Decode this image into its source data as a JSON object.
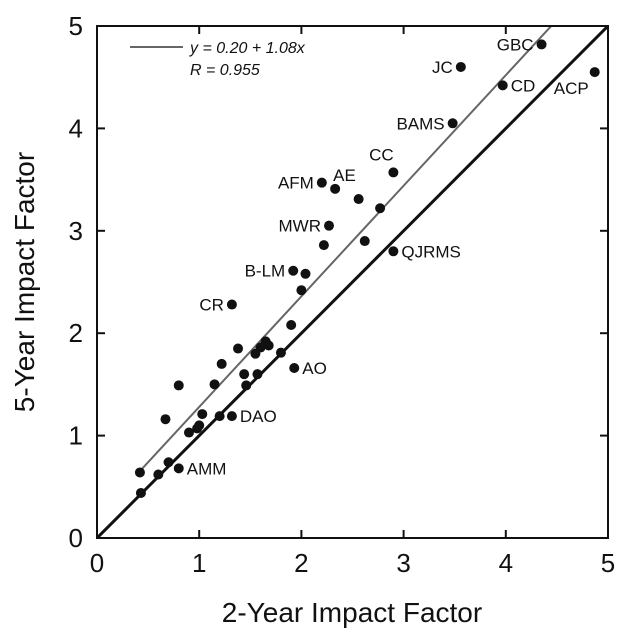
{
  "chart_data": {
    "type": "scatter",
    "xlabel": "2-Year Impact Factor",
    "ylabel": "5-Year Impact Factor",
    "xlim": [
      0,
      5
    ],
    "ylim": [
      0,
      5
    ],
    "x_ticks": [
      "0",
      "1",
      "2",
      "3",
      "4",
      "5"
    ],
    "y_ticks": [
      "0",
      "1",
      "2",
      "3",
      "4",
      "5"
    ],
    "grid": false,
    "legend": {
      "position": "top-left",
      "fit_text": "y = 0.20 + 1.08x",
      "r_text": "R = 0.955"
    },
    "fit_line": {
      "intercept": 0.2,
      "slope": 1.08
    },
    "identity_line": {
      "intercept": 0,
      "slope": 1
    },
    "points": [
      {
        "x": 4.35,
        "y": 4.82,
        "label": "GBC",
        "anchor": "left"
      },
      {
        "x": 3.56,
        "y": 4.6,
        "label": "JC",
        "anchor": "left"
      },
      {
        "x": 3.97,
        "y": 4.42,
        "label": "CD",
        "anchor": "right"
      },
      {
        "x": 4.87,
        "y": 4.55,
        "label": "ACP",
        "anchor": "left-below"
      },
      {
        "x": 3.48,
        "y": 4.05,
        "label": "BAMS",
        "anchor": "left"
      },
      {
        "x": 2.9,
        "y": 3.57,
        "label": "CC",
        "anchor": "above"
      },
      {
        "x": 2.2,
        "y": 3.47,
        "label": "AFM",
        "anchor": "left"
      },
      {
        "x": 2.33,
        "y": 3.41,
        "label": "AE",
        "anchor": "above-right"
      },
      {
        "x": 2.56,
        "y": 3.31,
        "label": ""
      },
      {
        "x": 2.77,
        "y": 3.22,
        "label": ""
      },
      {
        "x": 2.27,
        "y": 3.05,
        "label": "MWR",
        "anchor": "left"
      },
      {
        "x": 2.22,
        "y": 2.86,
        "label": ""
      },
      {
        "x": 2.62,
        "y": 2.9,
        "label": ""
      },
      {
        "x": 2.9,
        "y": 2.8,
        "label": "QJRMS",
        "anchor": "right"
      },
      {
        "x": 1.92,
        "y": 2.61,
        "label": "B-LM",
        "anchor": "left"
      },
      {
        "x": 2.04,
        "y": 2.58,
        "label": ""
      },
      {
        "x": 2.0,
        "y": 2.42,
        "label": ""
      },
      {
        "x": 1.32,
        "y": 2.28,
        "label": "CR",
        "anchor": "left"
      },
      {
        "x": 1.9,
        "y": 2.08,
        "label": ""
      },
      {
        "x": 1.65,
        "y": 1.92,
        "label": ""
      },
      {
        "x": 1.68,
        "y": 1.88,
        "label": ""
      },
      {
        "x": 1.6,
        "y": 1.86,
        "label": ""
      },
      {
        "x": 1.55,
        "y": 1.8,
        "label": ""
      },
      {
        "x": 1.38,
        "y": 1.85,
        "label": ""
      },
      {
        "x": 1.8,
        "y": 1.81,
        "label": ""
      },
      {
        "x": 1.22,
        "y": 1.7,
        "label": ""
      },
      {
        "x": 1.93,
        "y": 1.66,
        "label": "AO",
        "anchor": "right"
      },
      {
        "x": 1.44,
        "y": 1.6,
        "label": ""
      },
      {
        "x": 1.57,
        "y": 1.6,
        "label": ""
      },
      {
        "x": 0.8,
        "y": 1.49,
        "label": ""
      },
      {
        "x": 1.15,
        "y": 1.5,
        "label": ""
      },
      {
        "x": 1.46,
        "y": 1.49,
        "label": ""
      },
      {
        "x": 1.03,
        "y": 1.21,
        "label": ""
      },
      {
        "x": 1.2,
        "y": 1.19,
        "label": ""
      },
      {
        "x": 1.32,
        "y": 1.19,
        "label": "DAO",
        "anchor": "right"
      },
      {
        "x": 0.67,
        "y": 1.16,
        "label": ""
      },
      {
        "x": 1.0,
        "y": 1.1,
        "label": ""
      },
      {
        "x": 0.98,
        "y": 1.07,
        "label": ""
      },
      {
        "x": 0.9,
        "y": 1.03,
        "label": ""
      },
      {
        "x": 0.7,
        "y": 0.74,
        "label": ""
      },
      {
        "x": 0.8,
        "y": 0.68,
        "label": "AMM",
        "anchor": "right"
      },
      {
        "x": 0.42,
        "y": 0.64,
        "label": ""
      },
      {
        "x": 0.6,
        "y": 0.62,
        "label": ""
      },
      {
        "x": 0.43,
        "y": 0.44,
        "label": ""
      }
    ]
  }
}
